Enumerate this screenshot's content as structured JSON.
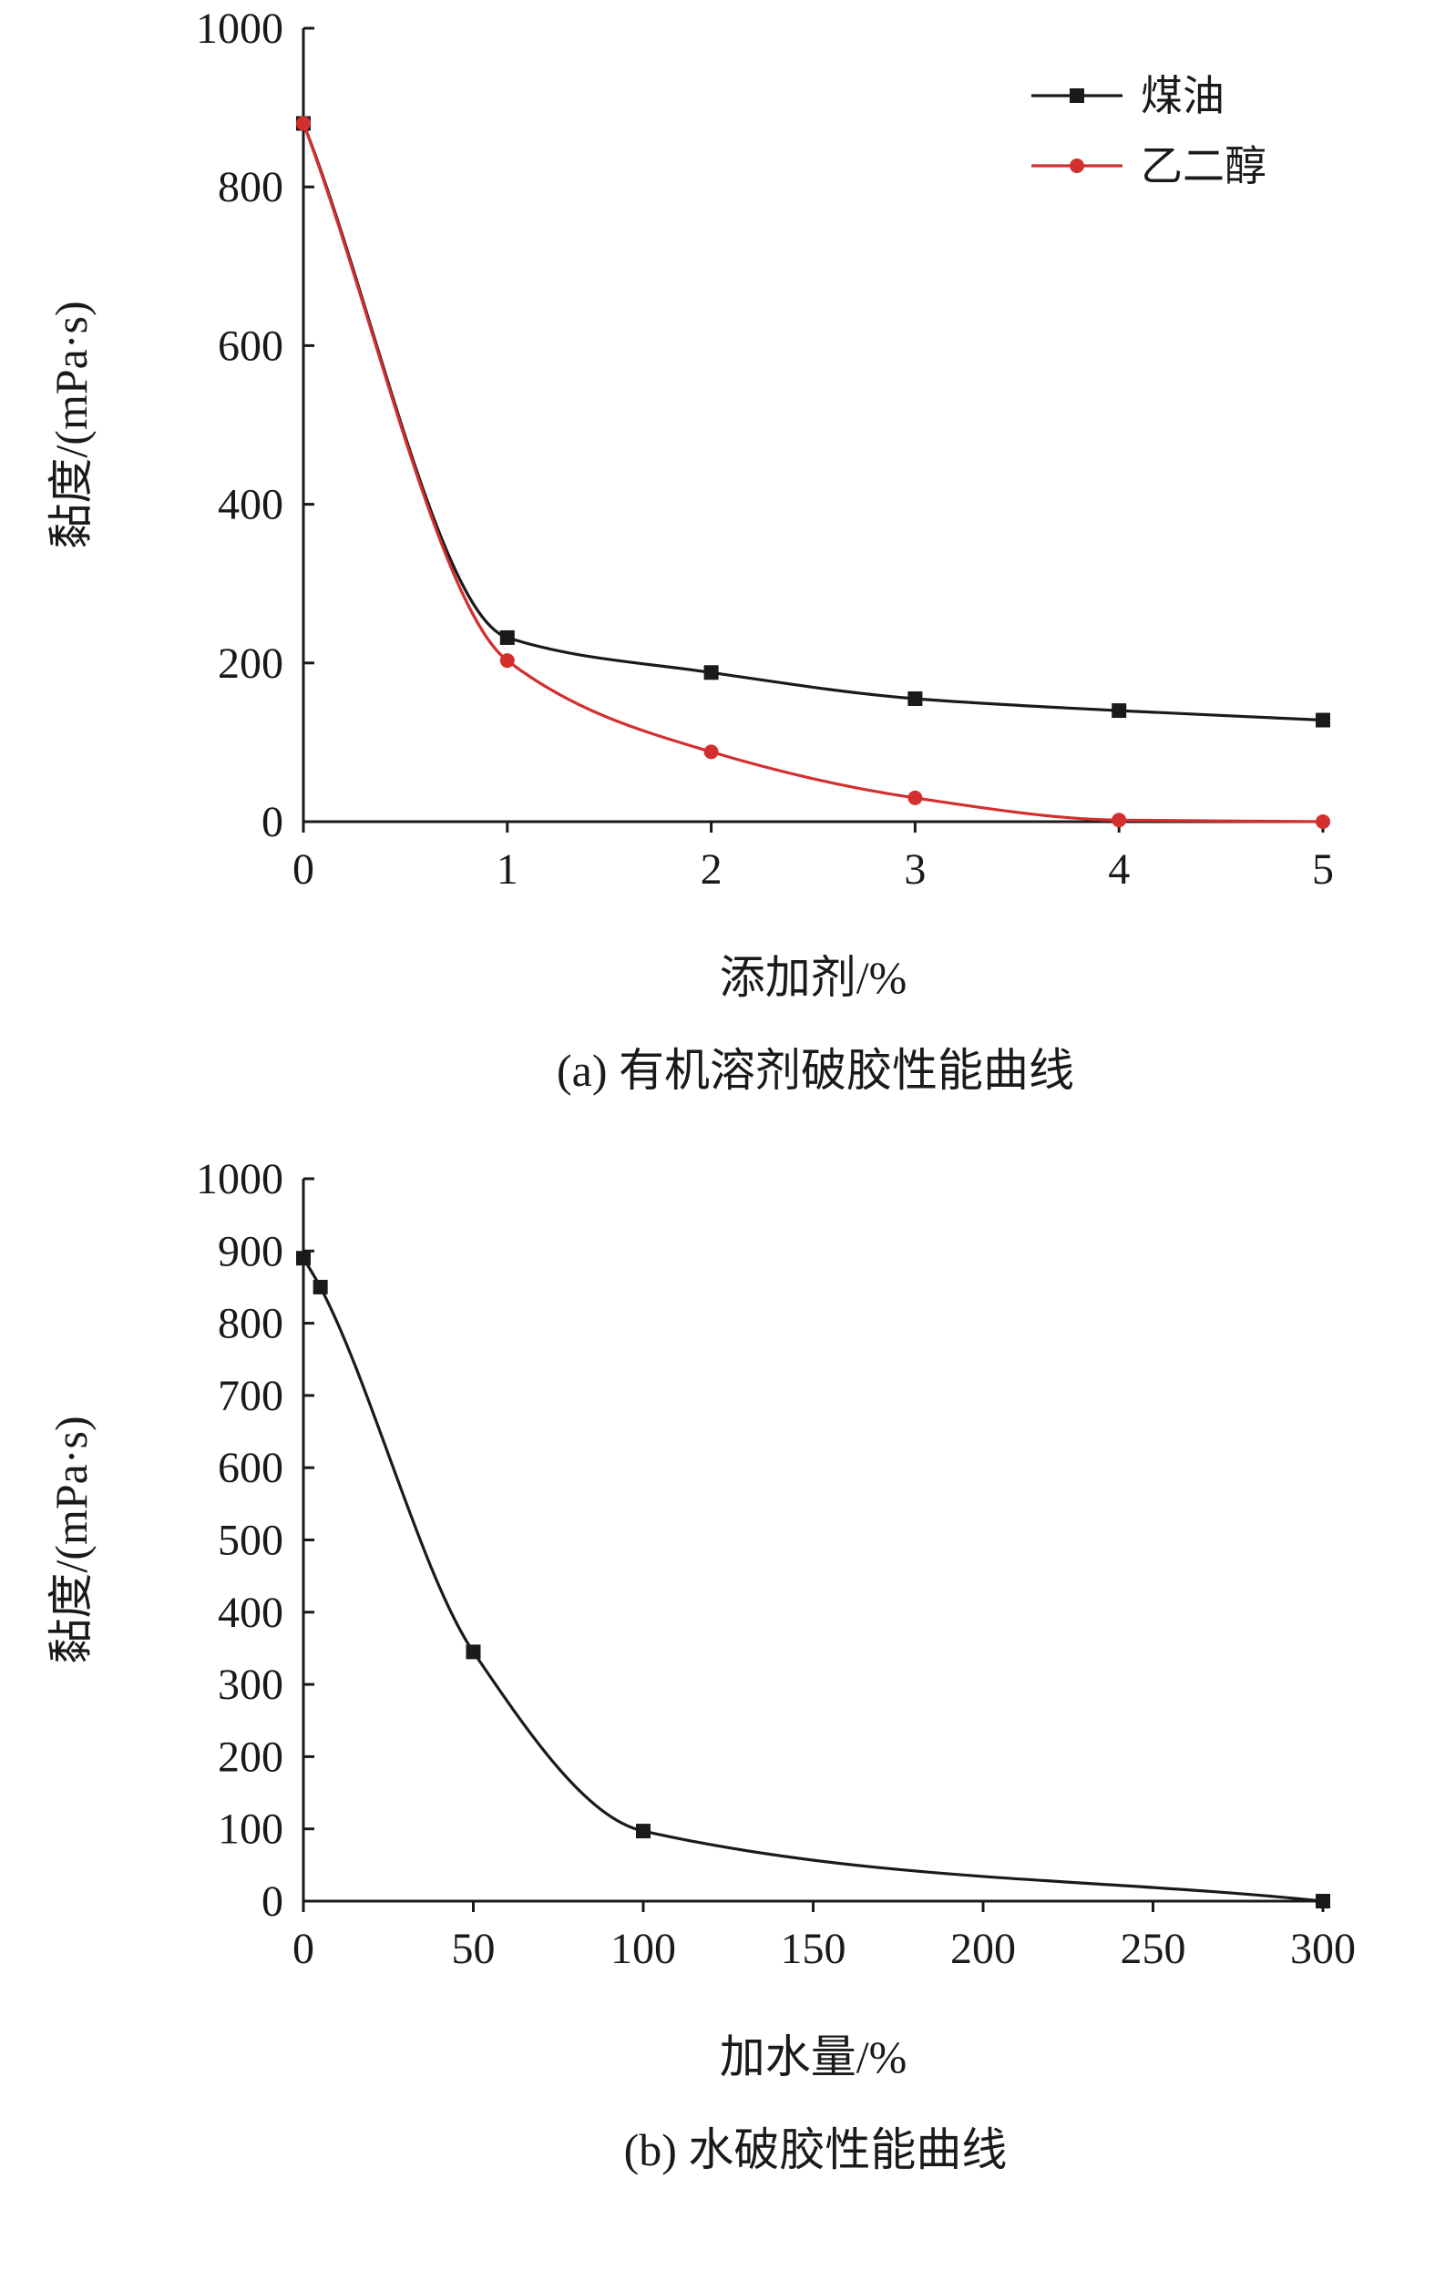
{
  "chart_data": [
    {
      "type": "line",
      "panel": "a",
      "caption": "(a) 有机溶剂破胶性能曲线",
      "xlabel": "添加剂/%",
      "ylabel": "黏度/(mPa·s)",
      "xlim": [
        0,
        5
      ],
      "ylim": [
        0,
        1000
      ],
      "x_ticks": [
        "0",
        "1",
        "2",
        "3",
        "4",
        "5"
      ],
      "y_ticks": [
        "0",
        "200",
        "400",
        "600",
        "800",
        "1000"
      ],
      "x_tick_values": [
        0,
        1,
        2,
        3,
        4,
        5
      ],
      "y_tick_values": [
        0,
        200,
        400,
        600,
        800,
        1000
      ],
      "grid": false,
      "legend_position": "top-right",
      "series": [
        {
          "name": "煤油",
          "color": "#1a1a1a",
          "marker": "square",
          "x": [
            0,
            1,
            2,
            3,
            4,
            5
          ],
          "y": [
            880,
            232,
            188,
            155,
            140,
            128
          ]
        },
        {
          "name": "乙二醇",
          "color": "#d32f2f",
          "marker": "circle",
          "x": [
            0,
            1,
            2,
            3,
            4,
            5
          ],
          "y": [
            880,
            203,
            88,
            30,
            2,
            0
          ]
        }
      ]
    },
    {
      "type": "line",
      "panel": "b",
      "caption": "(b) 水破胶性能曲线",
      "xlabel": "加水量/%",
      "ylabel": "黏度/(mPa·s)",
      "xlim": [
        0,
        300
      ],
      "ylim": [
        0,
        1000
      ],
      "x_ticks": [
        "0",
        "50",
        "100",
        "150",
        "200",
        "250",
        "300"
      ],
      "y_ticks": [
        "0",
        "100",
        "200",
        "300",
        "400",
        "500",
        "600",
        "700",
        "800",
        "900",
        "1000"
      ],
      "x_tick_values": [
        0,
        50,
        100,
        150,
        200,
        250,
        300
      ],
      "y_tick_values": [
        0,
        100,
        200,
        300,
        400,
        500,
        600,
        700,
        800,
        900,
        1000
      ],
      "grid": false,
      "series": [
        {
          "color": "#1a1a1a",
          "marker": "square",
          "x": [
            0,
            5,
            50,
            100,
            300
          ],
          "y": [
            890,
            850,
            345,
            97,
            0
          ]
        }
      ]
    }
  ]
}
